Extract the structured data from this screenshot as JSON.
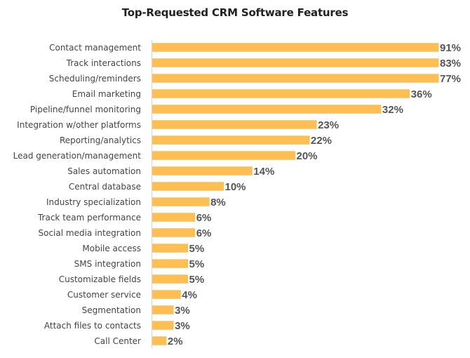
{
  "chart_data": {
    "type": "bar",
    "orientation": "horizontal",
    "title": "Top-Requested CRM Software Features",
    "xlabel": "",
    "ylabel": "",
    "value_suffix": "%",
    "bar_color": "#FDBE53",
    "axis_color": "#DDDDDD",
    "grid": false,
    "legend": "none",
    "categories": [
      "Contact management",
      "Track interactions",
      "Scheduling/reminders",
      "Email marketing",
      "Pipeline/funnel monitoring",
      "Integration w/other platforms",
      "Reporting/analytics",
      "Lead generation/management",
      "Sales automation",
      "Central database",
      "Industry specialization",
      "Track team performance",
      "Social media integration",
      "Mobile access",
      "SMS integration",
      "Customizable fields",
      "Customer service",
      "Segmentation",
      "Attach files to contacts",
      "Call Center"
    ],
    "values": [
      91,
      83,
      77,
      36,
      32,
      23,
      22,
      20,
      14,
      10,
      8,
      6,
      6,
      5,
      5,
      5,
      4,
      3,
      3,
      2
    ],
    "display_cap": 40
  }
}
